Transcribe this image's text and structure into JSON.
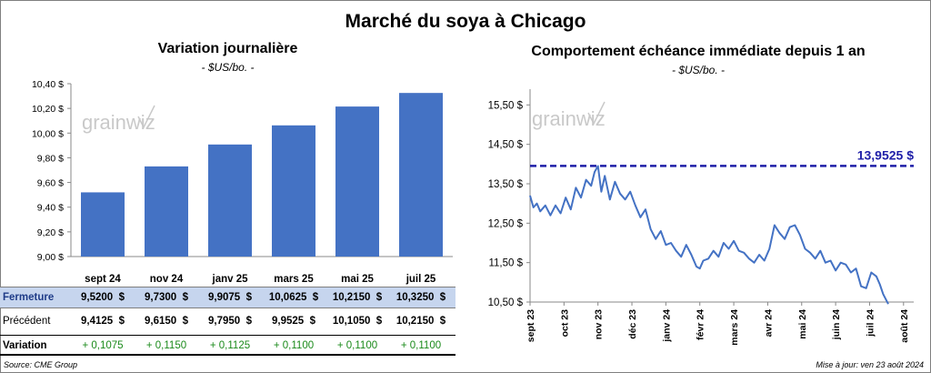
{
  "title": "Marché du soya à Chicago",
  "source": "Source: CME Group",
  "updated": "Mise à jour: ven 23 août 2024",
  "colors": {
    "bar": "#4472c4",
    "line": "#4472c4",
    "ref_line": "#1f1fa8",
    "highlight_row": "#c6d5ee",
    "positive": "#1a8a1a"
  },
  "watermark": "grainwiz",
  "chart_data": [
    {
      "type": "bar",
      "title": "Variation journalière",
      "subtitle": "- $US/bo. -",
      "categories": [
        "sept 24",
        "nov 24",
        "janv 25",
        "mars 25",
        "mai 25",
        "juil 25"
      ],
      "values": [
        9.52,
        9.73,
        9.9075,
        10.0625,
        10.215,
        10.325
      ],
      "ylim": [
        9.0,
        10.4
      ],
      "yticks": [
        "9,00 $",
        "9,20 $",
        "9,40 $",
        "9,60 $",
        "9,80 $",
        "10,00 $",
        "10,20 $",
        "10,40 $"
      ],
      "table": {
        "rows": [
          {
            "label": "Fermeture",
            "values": [
              "9,5200  $",
              "9,7300  $",
              "9,9075  $",
              "10,0625  $",
              "10,2150  $",
              "10,3250  $"
            ]
          },
          {
            "label": "Précédent",
            "values": [
              "9,4125  $",
              "9,6150  $",
              "9,7950  $",
              "9,9525  $",
              "10,1050  $",
              "10,2150  $"
            ]
          },
          {
            "label": "Variation",
            "values": [
              "+ 0,1075",
              "+ 0,1150",
              "+ 0,1125",
              "+ 0,1100",
              "+ 0,1100",
              "+ 0,1100"
            ]
          }
        ]
      }
    },
    {
      "type": "line",
      "title": "Comportement  échéance immédiate depuis 1 an",
      "subtitle": "- $US/bo. -",
      "ylim": [
        10.5,
        15.9
      ],
      "yticks": [
        "10,50 $",
        "11,50 $",
        "12,50 $",
        "13,50 $",
        "14,50 $",
        "15,50 $"
      ],
      "xticks": [
        "sept 23",
        "oct 23",
        "nov 23",
        "déc 23",
        "janv 24",
        "févr 24",
        "mars 24",
        "avr 24",
        "mai 24",
        "juin 24",
        "juil 24",
        "août 24"
      ],
      "reference": {
        "value": 13.9525,
        "label": "13,9525  $"
      },
      "series": [
        {
          "x_months": [
            0.0,
            0.1,
            0.2,
            0.3,
            0.45,
            0.6,
            0.75,
            0.9,
            1.05,
            1.2,
            1.35,
            1.5,
            1.65,
            1.8,
            1.9,
            2.0,
            2.1,
            2.2,
            2.35,
            2.5,
            2.65,
            2.8,
            2.95,
            3.1,
            3.25,
            3.4,
            3.55,
            3.7,
            3.85,
            4.0,
            4.15,
            4.3,
            4.45,
            4.6,
            4.75,
            4.9,
            5.0,
            5.1,
            5.25,
            5.4,
            5.55,
            5.7,
            5.85,
            6.0,
            6.15,
            6.3,
            6.45,
            6.6,
            6.75,
            6.9,
            7.05,
            7.2,
            7.35,
            7.5,
            7.65,
            7.8,
            7.95,
            8.1,
            8.25,
            8.4,
            8.55,
            8.7,
            8.85,
            9.0,
            9.15,
            9.3,
            9.45,
            9.6,
            9.75,
            9.9,
            10.05,
            10.2,
            10.3,
            10.4,
            10.55
          ],
          "values": [
            13.2,
            12.9,
            13.0,
            12.8,
            12.95,
            12.7,
            12.95,
            12.75,
            13.15,
            12.85,
            13.4,
            13.15,
            13.6,
            13.45,
            13.8,
            13.95,
            13.3,
            13.7,
            13.1,
            13.55,
            13.25,
            13.1,
            13.3,
            12.95,
            12.65,
            12.85,
            12.35,
            12.1,
            12.3,
            11.95,
            12.0,
            11.8,
            11.65,
            11.95,
            11.7,
            11.4,
            11.35,
            11.55,
            11.6,
            11.8,
            11.65,
            12.0,
            11.85,
            12.05,
            11.8,
            11.75,
            11.6,
            11.5,
            11.7,
            11.55,
            11.85,
            12.45,
            12.25,
            12.1,
            12.4,
            12.45,
            12.2,
            11.85,
            11.75,
            11.6,
            11.8,
            11.5,
            11.55,
            11.3,
            11.5,
            11.45,
            11.25,
            11.35,
            10.9,
            10.85,
            11.25,
            11.15,
            10.95,
            10.7,
            10.45
          ]
        }
      ]
    }
  ]
}
